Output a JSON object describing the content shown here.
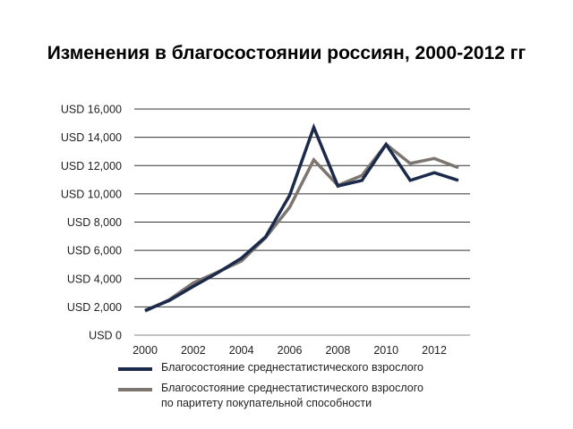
{
  "chart_data": {
    "type": "line",
    "title": "Изменения в благосостоянии россиян, 2000-2012 гг",
    "xlabel": "",
    "ylabel": "",
    "x": [
      2000,
      2001,
      2002,
      2003,
      2004,
      2005,
      2006,
      2007,
      2008,
      2009,
      2010,
      2011,
      2012,
      2013
    ],
    "xlim": [
      2000,
      2013
    ],
    "xticks": [
      "2000",
      "2002",
      "2004",
      "2006",
      "2008",
      "2010",
      "2012"
    ],
    "ylim": [
      0,
      16000
    ],
    "yticks": [
      "USD 0",
      "USD 2,000",
      "USD 4,000",
      "USD 6,000",
      "USD 8,000",
      "USD 10,000",
      "USD 12,000",
      "USD 14,000",
      "USD 16,000"
    ],
    "grid": true,
    "legend_position": "bottom",
    "series": [
      {
        "name": "Благосостояние среднестатистического взрослого",
        "color": "#1b2a4a",
        "values": [
          1750,
          2450,
          3450,
          4400,
          5450,
          6950,
          9900,
          14700,
          10550,
          10950,
          13500,
          10950,
          11500,
          10950
        ]
      },
      {
        "name": "Благосостояние среднестатистического взрослого по паритету покупательной способности",
        "color": "#7d7670",
        "name_lines": [
          "Благосостояние среднестатистического взрослого",
          "по паритету покупательной способности"
        ],
        "values": [
          1700,
          2500,
          3700,
          4450,
          5250,
          6900,
          9050,
          12400,
          10600,
          11300,
          13500,
          12150,
          12500,
          11850
        ]
      }
    ]
  }
}
